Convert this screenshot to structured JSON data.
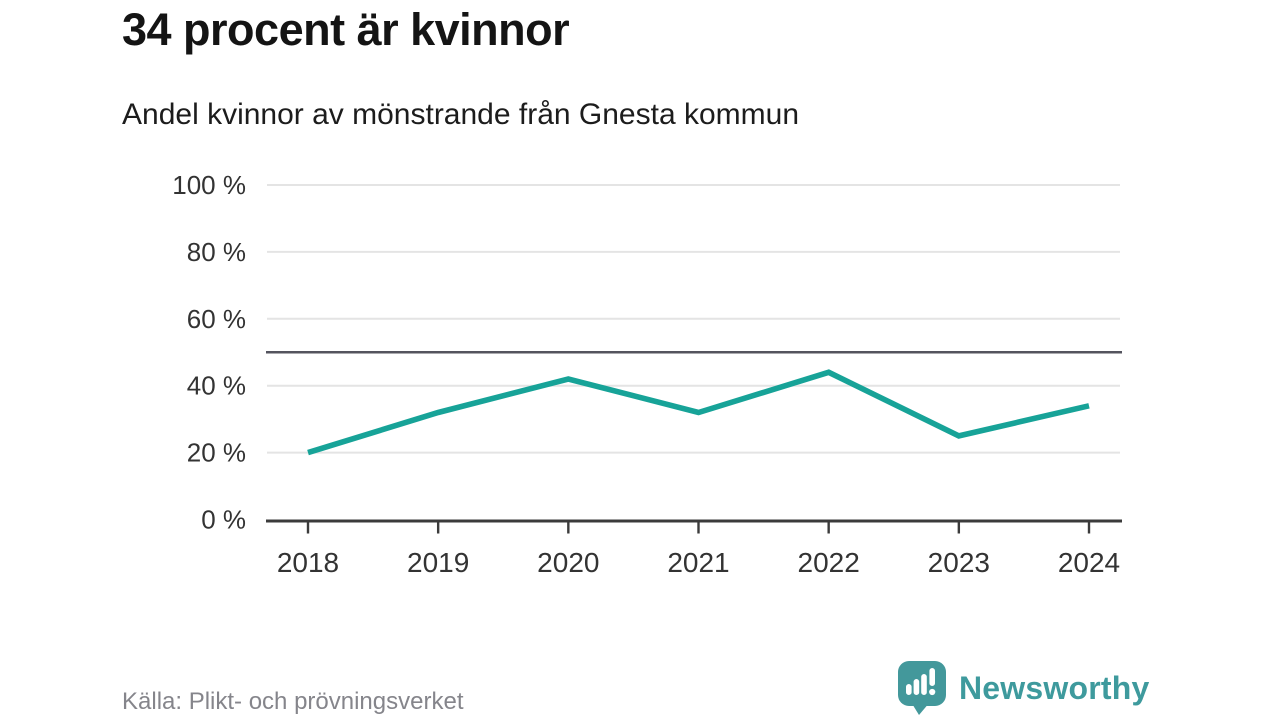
{
  "header": {
    "title": "34 procent är kvinnor",
    "subtitle": "Andel kvinnor av mönstrande från Gnesta kommun"
  },
  "chart_data": {
    "type": "line",
    "title": "34 procent är kvinnor",
    "subtitle": "Andel kvinnor av mönstrande från Gnesta kommun",
    "x": [
      2018,
      2019,
      2020,
      2021,
      2022,
      2023,
      2024
    ],
    "xticklabels": [
      "2018",
      "2019",
      "2020",
      "2021",
      "2022",
      "2023",
      "2024"
    ],
    "series": [
      {
        "name": "Andel kvinnor av mönstrande",
        "values": [
          20,
          32,
          42,
          32,
          44,
          25,
          34
        ]
      }
    ],
    "ylim": [
      0,
      100
    ],
    "yticks": [
      0,
      20,
      40,
      60,
      80,
      100
    ],
    "yticklabels": [
      "0 %",
      "20 %",
      "40 %",
      "60 %",
      "80 %",
      "100 %"
    ],
    "reference_line": 50,
    "grid": true,
    "legend": "none",
    "line_color": "#17a398",
    "reference_line_color": "#54545e",
    "grid_color": "#e4e4e4",
    "axis_color": "#3b3b3b",
    "tick_label_color": "#333333"
  },
  "footer": {
    "source": "Källa: Plikt- och prövningsverket",
    "brand": "Newsworthy",
    "brand_color": "#3e9a9d",
    "logo_bubble_color": "#43989b"
  }
}
